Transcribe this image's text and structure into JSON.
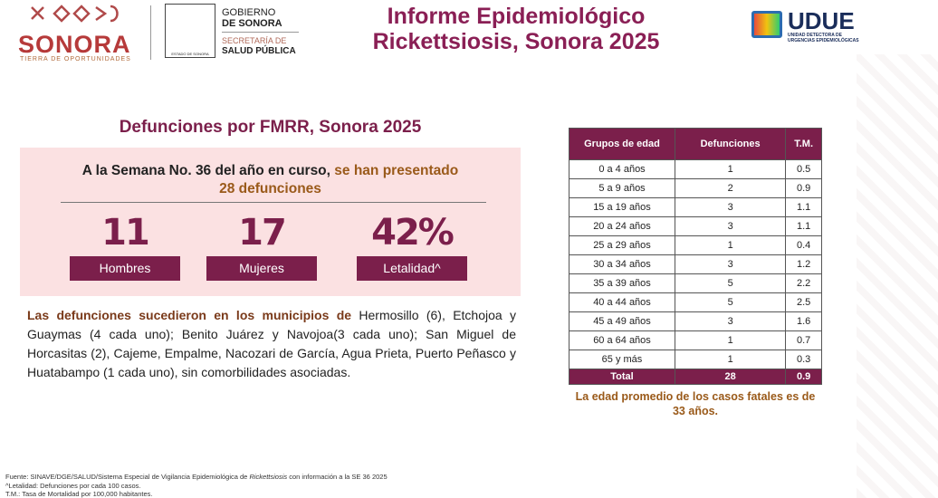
{
  "header": {
    "sonora_logo": {
      "name": "SONORA",
      "tagline": "TIERRA DE OPORTUNIDADES"
    },
    "gobierno": {
      "line1": "GOBIERNO",
      "line2": "DE SONORA",
      "secretaria1": "SECRETARÍA DE",
      "secretaria2": "SALUD PÚBLICA",
      "escudo": "ESTADO DE SONORA"
    },
    "title": [
      "Informe Epidemiológico",
      "Rickettsiosis, Sonora 2025"
    ],
    "udue": {
      "name": "UDUE",
      "line1": "UNIDAD DETECTORA DE",
      "line2": "URGENCIAS EPIDEMIOLÓGICAS"
    }
  },
  "section_title": "Defunciones por FMRR, Sonora 2025",
  "summary": {
    "lead": "A la Semana No. 36 del año en curso,",
    "highlight": "se han presentado 28 defunciones"
  },
  "stats": [
    {
      "value": "11",
      "label": "Hombres"
    },
    {
      "value": "17",
      "label": "Mujeres"
    },
    {
      "value": "42%",
      "label": "Letalidad^"
    }
  ],
  "municipalities": {
    "lead": "Las defunciones sucedieron en los municipios de",
    "text": "Hermosillo (6), Etchojoa y Guaymas (4 cada uno); Benito Juárez y Navojoa(3 cada uno);  San Miguel de Horcasitas (2),  Cajeme, Empalme, Nacozari de García, Agua Prieta, Puerto Peñasco y Huatabampo (1 cada uno), sin comorbilidades asociadas."
  },
  "table": {
    "headers": [
      "Grupos de edad",
      "Defunciones",
      "T.M."
    ],
    "rows": [
      [
        "0 a 4 años",
        "1",
        "0.5"
      ],
      [
        "5 a 9 años",
        "2",
        "0.9"
      ],
      [
        "15 a 19 años",
        "3",
        "1.1"
      ],
      [
        "20 a 24 años",
        "3",
        "1.1"
      ],
      [
        "25 a 29 años",
        "1",
        "0.4"
      ],
      [
        "30 a 34 años",
        "3",
        "1.2"
      ],
      [
        "35 a 39 años",
        "5",
        "2.2"
      ],
      [
        "40 a 44 años",
        "5",
        "2.5"
      ],
      [
        "45 a 49 años",
        "3",
        "1.6"
      ],
      [
        "60 a 64 años",
        "1",
        "0.7"
      ],
      [
        "65 y más",
        "1",
        "0.3"
      ]
    ],
    "total": [
      "Total",
      "28",
      "0.9"
    ]
  },
  "table_note": "La edad promedio de los casos fatales es de 33 años.",
  "footer": {
    "source_pre": "Fuente: SINAVE/DGE/SALUD/Sistema Especial de Vigilancia Epidemiológica de ",
    "source_italic": "Rickettsiosis",
    "source_post": " con información a la SE 36 2025",
    "notes": [
      "^Letalidad: Defunciones por cada 100 casos.",
      "T.M.: Tasa de Mortalidad por  100,000 habitantes."
    ]
  }
}
